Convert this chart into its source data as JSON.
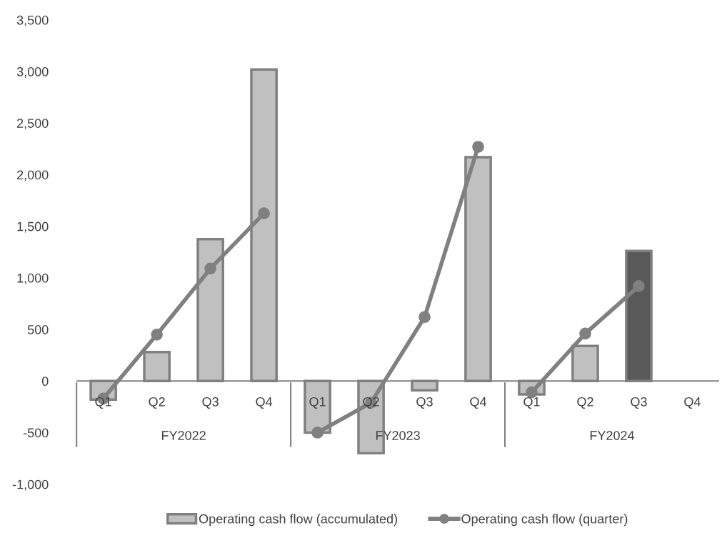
{
  "chart_data": {
    "type": "bar",
    "categories": [
      "Q1",
      "Q2",
      "Q3",
      "Q4",
      "Q1",
      "Q2",
      "Q3",
      "Q4",
      "Q1",
      "Q2",
      "Q3",
      "Q4"
    ],
    "series": [
      {
        "name": "Operating cash flow (accumulated)",
        "color": "#c0c0c0",
        "colors": [
          "#c0c0c0",
          "#c0c0c0",
          "#c0c0c0",
          "#c0c0c0",
          "#c0c0c0",
          "#c0c0c0",
          "#c0c0c0",
          "#c0c0c0",
          "#c0c0c0",
          "#c0c0c0",
          "#595959",
          "#c0c0c0"
        ],
        "values": [
          -180,
          280,
          1375,
          3020,
          -500,
          -700,
          -90,
          2170,
          -130,
          340,
          1260,
          null
        ]
      },
      {
        "name": "Operating cash flow (quarter)",
        "type": "line",
        "color": "#808080",
        "marker": "circle",
        "values": [
          -170,
          450,
          1090,
          1625,
          -500,
          -210,
          620,
          2270,
          -110,
          460,
          920,
          null
        ]
      }
    ],
    "annotations": [
      "FY2022",
      "FY2023",
      "FY2024"
    ],
    "ylim": [
      -1000,
      3500
    ],
    "yticks": [
      {
        "value": -1000,
        "label": "-1,000"
      },
      {
        "value": -500,
        "label": "-500"
      },
      0,
      500,
      {
        "value": 1000,
        "label": "1,000"
      },
      {
        "value": 1500,
        "label": "1,500"
      },
      {
        "value": 2000,
        "label": "2,000"
      },
      {
        "value": 2500,
        "label": "2,500"
      },
      {
        "value": 3000,
        "label": "3,000"
      },
      {
        "value": 3500,
        "label": "3,500"
      }
    ],
    "grid": false,
    "legend": "bottom"
  }
}
